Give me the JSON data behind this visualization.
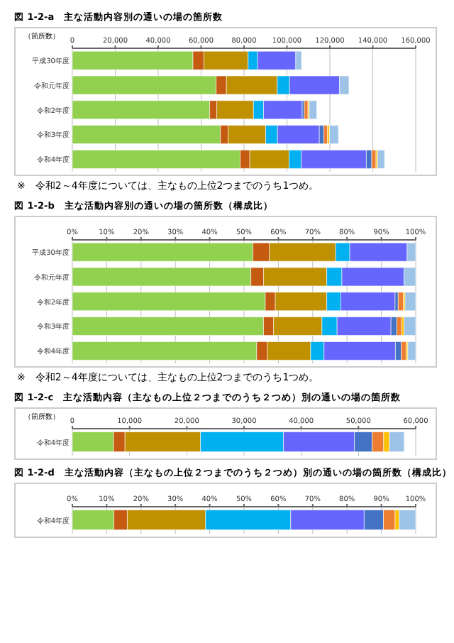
{
  "chart_data": [
    {
      "type": "bar",
      "orientation": "horizontal",
      "stacked": true,
      "grid": "x",
      "title": "図 1-2-a　主な活動内容別の通いの場の箇所数",
      "ylabel": "（箇所数）",
      "categories": [
        "平成30年度",
        "令和元年度",
        "令和2年度",
        "令和3年度",
        "令和4年度"
      ],
      "xlim": [
        0,
        160000
      ],
      "xticks": [
        {
          "value": 0,
          "label": "0"
        },
        {
          "value": 20000,
          "label": "20,000"
        },
        {
          "value": 40000,
          "label": "40,000"
        },
        {
          "value": 60000,
          "label": "60,000"
        },
        {
          "value": 80000,
          "label": "80,000"
        },
        {
          "value": 100000,
          "label": "100,000"
        },
        {
          "value": 120000,
          "label": "120,000"
        },
        {
          "value": 140000,
          "label": "140,000"
        },
        {
          "value": 160000,
          "label": "160,000"
        }
      ],
      "annotations": [
        "※　令和2～4年度については、主なもの上位2つまでのうち1つめ。"
      ],
      "series": [
        {
          "color": "#92d050",
          "values": [
            56200,
            67000,
            64000,
            69000,
            78200
          ]
        },
        {
          "color": "#c55a11",
          "values": [
            5100,
            4800,
            3300,
            3600,
            4500
          ]
        },
        {
          "color": "#bf9000",
          "values": [
            20600,
            23700,
            17100,
            17500,
            18300
          ]
        },
        {
          "color": "#00b0f0",
          "values": [
            4400,
            5700,
            4700,
            5500,
            5700
          ]
        },
        {
          "color": "#6666ff",
          "values": [
            17800,
            23300,
            18000,
            19500,
            30300
          ]
        },
        {
          "color": "#4472c4",
          "values": [
            null,
            null,
            1000,
            2100,
            2500
          ]
        },
        {
          "color": "#ed7d31",
          "values": [
            null,
            null,
            1700,
            1700,
            2000
          ]
        },
        {
          "color": "#ffc000",
          "values": [
            null,
            null,
            600,
            900,
            700
          ]
        },
        {
          "color": "#9dc3e6",
          "values": [
            2700,
            4400,
            3500,
            4200,
            3300
          ]
        }
      ]
    },
    {
      "type": "bar",
      "orientation": "horizontal",
      "stacked": true,
      "grid": "x",
      "title": "図 1-2-b　主な活動内容別の通いの場の箇所数（構成比）",
      "categories": [
        "平成30年度",
        "令和元年度",
        "令和2年度",
        "令和3年度",
        "令和4年度"
      ],
      "xlim": [
        0,
        100
      ],
      "xticks": [
        {
          "value": 0,
          "label": "0%"
        },
        {
          "value": 10,
          "label": "10%"
        },
        {
          "value": 20,
          "label": "20%"
        },
        {
          "value": 30,
          "label": "30%"
        },
        {
          "value": 40,
          "label": "40%"
        },
        {
          "value": 50,
          "label": "50%"
        },
        {
          "value": 60,
          "label": "60%"
        },
        {
          "value": 70,
          "label": "70%"
        },
        {
          "value": 80,
          "label": "80%"
        },
        {
          "value": 90,
          "label": "90%"
        },
        {
          "value": 100,
          "label": "100%"
        }
      ],
      "annotations": [
        "※　令和2～4年度については、主なもの上位2つまでのうち1つめ。"
      ],
      "series": [
        {
          "color": "#92d050",
          "values": [
            52.6,
            52.0,
            56.2,
            55.7,
            53.7
          ]
        },
        {
          "color": "#c55a11",
          "values": [
            4.8,
            3.7,
            2.9,
            2.9,
            3.1
          ]
        },
        {
          "color": "#bf9000",
          "values": [
            19.3,
            18.4,
            15.0,
            14.1,
            12.6
          ]
        },
        {
          "color": "#00b0f0",
          "values": [
            4.1,
            4.4,
            4.1,
            4.4,
            3.9
          ]
        },
        {
          "color": "#6666ff",
          "values": [
            16.7,
            18.1,
            15.8,
            15.7,
            20.8
          ]
        },
        {
          "color": "#4472c4",
          "values": [
            null,
            null,
            0.9,
            1.7,
            1.7
          ]
        },
        {
          "color": "#ed7d31",
          "values": [
            null,
            null,
            1.5,
            1.4,
            1.4
          ]
        },
        {
          "color": "#ffc000",
          "values": [
            null,
            null,
            0.5,
            0.7,
            0.5
          ]
        },
        {
          "color": "#9dc3e6",
          "values": [
            2.5,
            3.4,
            3.1,
            3.4,
            2.3
          ]
        }
      ]
    },
    {
      "type": "bar",
      "orientation": "horizontal",
      "stacked": true,
      "grid": "x",
      "title": "図 1-2-c　主な活動内容（主なもの上位２つまでのうち２つめ）別の通いの場の箇所数",
      "ylabel": "（箇所数）",
      "categories": [
        "令和4年度"
      ],
      "xlim": [
        0,
        60000
      ],
      "xticks": [
        {
          "value": 0,
          "label": "0"
        },
        {
          "value": 10000,
          "label": "10,000"
        },
        {
          "value": 20000,
          "label": "20,000"
        },
        {
          "value": 30000,
          "label": "30,000"
        },
        {
          "value": 40000,
          "label": "40,000"
        },
        {
          "value": 50000,
          "label": "50,000"
        },
        {
          "value": 60000,
          "label": "60,000"
        }
      ],
      "series": [
        {
          "color": "#92d050",
          "values": [
            7200
          ]
        },
        {
          "color": "#c55a11",
          "values": [
            2000
          ]
        },
        {
          "color": "#bf9000",
          "values": [
            13200
          ]
        },
        {
          "color": "#00b0f0",
          "values": [
            14500
          ]
        },
        {
          "color": "#6666ff",
          "values": [
            12400
          ]
        },
        {
          "color": "#4472c4",
          "values": [
            3100
          ]
        },
        {
          "color": "#ed7d31",
          "values": [
            2000
          ]
        },
        {
          "color": "#ffc000",
          "values": [
            1000
          ]
        },
        {
          "color": "#9dc3e6",
          "values": [
            2600
          ]
        }
      ]
    },
    {
      "type": "bar",
      "orientation": "horizontal",
      "stacked": true,
      "grid": "x",
      "title": "図 1-2-d　主な活動内容（主なもの上位２つまでのうち２つめ）別の通いの場の箇所数（構成比）",
      "categories": [
        "令和4年度"
      ],
      "xlim": [
        0,
        100
      ],
      "xticks": [
        {
          "value": 0,
          "label": "0%"
        },
        {
          "value": 10,
          "label": "10%"
        },
        {
          "value": 20,
          "label": "20%"
        },
        {
          "value": 30,
          "label": "30%"
        },
        {
          "value": 40,
          "label": "40%"
        },
        {
          "value": 50,
          "label": "50%"
        },
        {
          "value": 60,
          "label": "60%"
        },
        {
          "value": 70,
          "label": "70%"
        },
        {
          "value": 80,
          "label": "80%"
        },
        {
          "value": 90,
          "label": "90%"
        },
        {
          "value": 100,
          "label": "100%"
        }
      ],
      "series": [
        {
          "color": "#92d050",
          "values": [
            12.1
          ]
        },
        {
          "color": "#c55a11",
          "values": [
            3.9
          ]
        },
        {
          "color": "#bf9000",
          "values": [
            22.8
          ]
        },
        {
          "color": "#00b0f0",
          "values": [
            24.8
          ]
        },
        {
          "color": "#6666ff",
          "values": [
            21.4
          ]
        },
        {
          "color": "#4472c4",
          "values": [
            5.6
          ]
        },
        {
          "color": "#ed7d31",
          "values": [
            3.4
          ]
        },
        {
          "color": "#ffc000",
          "values": [
            1.2
          ]
        },
        {
          "color": "#9dc3e6",
          "values": [
            4.8
          ]
        }
      ]
    }
  ]
}
